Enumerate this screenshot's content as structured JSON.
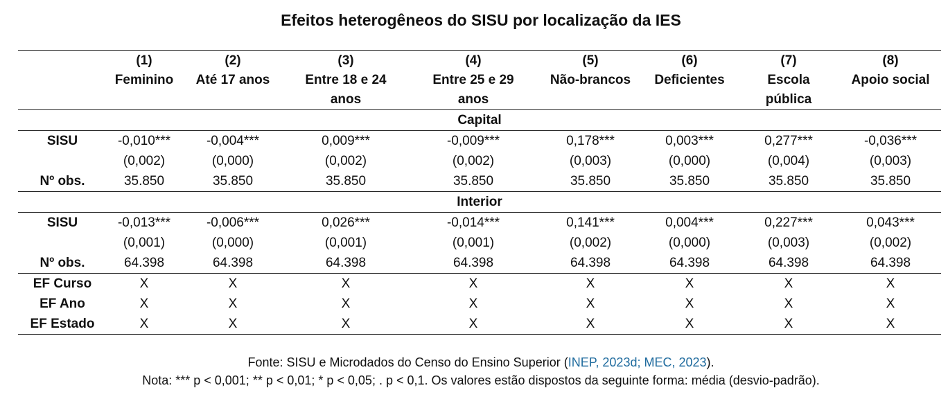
{
  "title": "Efeitos heterogêneos do SISU por localização da IES",
  "columns": [
    {
      "num": "(1)",
      "name": [
        "Feminino"
      ]
    },
    {
      "num": "(2)",
      "name": [
        "Até 17 anos"
      ]
    },
    {
      "num": "(3)",
      "name": [
        "Entre 18 e 24",
        "anos"
      ]
    },
    {
      "num": "(4)",
      "name": [
        "Entre 25 e 29",
        "anos"
      ]
    },
    {
      "num": "(5)",
      "name": [
        "Não-brancos"
      ]
    },
    {
      "num": "(6)",
      "name": [
        "Deficientes"
      ]
    },
    {
      "num": "(7)",
      "name": [
        "Escola",
        "pública"
      ]
    },
    {
      "num": "(8)",
      "name": [
        "Apoio social"
      ]
    }
  ],
  "sections": [
    {
      "label": "Capital",
      "coef_label": "SISU",
      "obs_label": "Nº obs.",
      "coef": [
        "-0,010***",
        "-0,004***",
        "0,009***",
        "-0,009***",
        "0,178***",
        "0,003***",
        "0,277***",
        "-0,036***"
      ],
      "se": [
        "(0,002)",
        "(0,000)",
        "(0,002)",
        "(0,002)",
        "(0,003)",
        "(0,000)",
        "(0,004)",
        "(0,003)"
      ],
      "obs": [
        "35.850",
        "35.850",
        "35.850",
        "35.850",
        "35.850",
        "35.850",
        "35.850",
        "35.850"
      ]
    },
    {
      "label": "Interior",
      "coef_label": "SISU",
      "obs_label": "Nº obs.",
      "coef": [
        "-0,013***",
        "-0,006***",
        "0,026***",
        "-0,014***",
        "0,141***",
        "0,004***",
        "0,227***",
        "0,043***"
      ],
      "se": [
        "(0,001)",
        "(0,000)",
        "(0,001)",
        "(0,001)",
        "(0,002)",
        "(0,000)",
        "(0,003)",
        "(0,002)"
      ],
      "obs": [
        "64.398",
        "64.398",
        "64.398",
        "64.398",
        "64.398",
        "64.398",
        "64.398",
        "64.398"
      ]
    }
  ],
  "fixed_effects": [
    {
      "label": "EF Curso",
      "marks": [
        "X",
        "X",
        "X",
        "X",
        "X",
        "X",
        "X",
        "X"
      ]
    },
    {
      "label": "EF Ano",
      "marks": [
        "X",
        "X",
        "X",
        "X",
        "X",
        "X",
        "X",
        "X"
      ]
    },
    {
      "label": "EF Estado",
      "marks": [
        "X",
        "X",
        "X",
        "X",
        "X",
        "X",
        "X",
        "X"
      ]
    }
  ],
  "notes": {
    "source_prefix": "Fonte: SISU e Microdados do Censo do Ensino Superior ",
    "source_open": "(",
    "source_citation": "INEP, 2023d; MEC, 2023",
    "source_close": ").",
    "note": "Nota: *** p < 0,001; ** p < 0,01; * p < 0,05; . p < 0,1. Os valores estão dispostos da seguinte forma: média (desvio-padrão)."
  },
  "colors": {
    "citation": "#1f6b9e",
    "rule": "#222222"
  }
}
